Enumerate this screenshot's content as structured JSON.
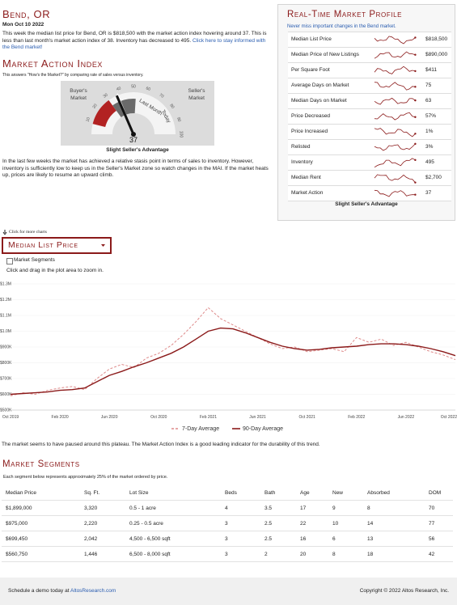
{
  "header": {
    "title": "Bend, OR",
    "date": "Mon Oct 10 2022",
    "summary": "This week the median list price for Bend, OR is $818,500 with the market action index hovering around 37. This is less than last month's market action index of 38. Inventory has decreased to 495.",
    "summary_link": "Click here to stay informed with the Bend market!"
  },
  "market_action": {
    "title": "Market Action Index",
    "note": "This answers \"How's the Market?\" by comparing rate of sales versus inventory.",
    "buyers": "Buyer's Market",
    "sellers": "Seller's Market",
    "last_month": "Last Month",
    "today": "Today",
    "value": 37,
    "previous": 38,
    "range": [
      0,
      100
    ],
    "ticks": [
      10,
      20,
      30,
      40,
      50,
      60,
      70,
      80,
      90,
      100
    ],
    "verdict": "Slight Seller's Advantage",
    "analysis": "In the last few weeks the market has achieved a relative stasis point in terms of sales to inventory. However, inventory is sufficiently low to keep us in the Seller's Market zone so watch changes in the MAI. If the market heats up, prices are likely to resume an upward climb."
  },
  "profile": {
    "title": "Real-Time Market Profile",
    "subtitle": "Never miss important changes in the Bend market.",
    "rows": [
      [
        "Median List Price",
        "$818,500"
      ],
      [
        "Median Price of New Listings",
        "$890,000"
      ],
      [
        "Per Square Foot",
        "$411"
      ],
      [
        "Average Days on Market",
        "75"
      ],
      [
        "Median Days on Market",
        "63"
      ],
      [
        "Price Decreased",
        "57%"
      ],
      [
        "Price Increased",
        "1%"
      ],
      [
        "Relisted",
        "3%"
      ],
      [
        "Inventory",
        "495"
      ],
      [
        "Median Rent",
        "$2,700"
      ],
      [
        "Market Action",
        "37"
      ]
    ],
    "verdict": "Slight Seller's Advantage"
  },
  "controls": {
    "more_charts": "Click for more charts",
    "dropdown": "Median List Price",
    "segments_toggle": "Market Segments",
    "zoom_hint": "Click and drag in the plot area to zoom in."
  },
  "chart_data": {
    "type": "line",
    "categories": [
      "Oct 2019",
      null,
      null,
      null,
      "Feb 2020",
      null,
      null,
      null,
      "Jun 2020",
      null,
      null,
      null,
      "Oct 2020",
      null,
      null,
      null,
      "Feb 2021",
      null,
      null,
      null,
      "Jun 2021",
      null,
      null,
      null,
      "Oct 2021",
      null,
      null,
      null,
      "Feb 2022",
      null,
      null,
      null,
      "Jun 2022",
      null,
      null,
      null,
      "Oct 2022"
    ],
    "series": [
      {
        "name": "7-Day Average",
        "color": "#de8a8a",
        "dashed": true,
        "values": [
          590000,
          610000,
          600000,
          625000,
          640000,
          650000,
          630000,
          700000,
          760000,
          790000,
          770000,
          830000,
          860000,
          910000,
          980000,
          1060000,
          1150000,
          1080000,
          1040000,
          1000000,
          960000,
          920000,
          890000,
          900000,
          870000,
          880000,
          890000,
          870000,
          960000,
          930000,
          950000,
          910000,
          930000,
          900000,
          870000,
          850000,
          820000
        ]
      },
      {
        "name": "90-Day Average",
        "color": "#8b1a1a",
        "dashed": false,
        "values": [
          600000,
          605000,
          610000,
          615000,
          625000,
          630000,
          640000,
          680000,
          720000,
          745000,
          775000,
          800000,
          830000,
          860000,
          900000,
          950000,
          1000000,
          1020000,
          1015000,
          990000,
          960000,
          930000,
          905000,
          890000,
          880000,
          885000,
          895000,
          900000,
          905000,
          915000,
          920000,
          920000,
          915000,
          905000,
          890000,
          870000,
          845000
        ]
      }
    ],
    "ylim": [
      500000,
      1300000
    ],
    "yticks": [
      {
        "value": 500000,
        "label": "$500K"
      },
      {
        "value": 600000,
        "label": "$600K"
      },
      {
        "value": 700000,
        "label": "$700K"
      },
      {
        "value": 800000,
        "label": "$800K"
      },
      {
        "value": 900000,
        "label": "$900K"
      },
      {
        "value": 1000000,
        "label": "$1.0M"
      },
      {
        "value": 1100000,
        "label": "$1.1M"
      },
      {
        "value": 1200000,
        "label": "$1.2M"
      },
      {
        "value": 1300000,
        "label": "$1.3M"
      }
    ],
    "grid": true
  },
  "commentary": "The market seems to have paused around this plateau. The Market Action Index is a good leading indicator for the durability of this trend.",
  "segments": {
    "title": "Market Segments",
    "note": "Each segment below represents approximately 25% of the market ordered by price.",
    "columns": [
      "Median Price",
      "Sq. Ft.",
      "Lot Size",
      "Beds",
      "Bath",
      "Age",
      "New",
      "Absorbed",
      "DOM"
    ],
    "rows": [
      [
        "$1,899,000",
        "3,320",
        "0.5 - 1 acre",
        "4",
        "3.5",
        "17",
        "9",
        "8",
        "70"
      ],
      [
        "$975,000",
        "2,220",
        "0.25 - 0.5 acre",
        "3",
        "2.5",
        "22",
        "10",
        "14",
        "77"
      ],
      [
        "$699,450",
        "2,042",
        "4,500 - 6,500 sqft",
        "3",
        "2.5",
        "16",
        "6",
        "13",
        "56"
      ],
      [
        "$560,750",
        "1,446",
        "6,500 - 8,000 sqft",
        "3",
        "2",
        "20",
        "8",
        "18",
        "42"
      ]
    ]
  },
  "footer": {
    "left_prefix": "Schedule a demo today at ",
    "left_link": "AltosResearch.com",
    "right": "Copyright © 2022 Altos Research, Inc."
  }
}
